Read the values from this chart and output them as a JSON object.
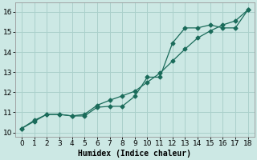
{
  "background_color": "#cce8e4",
  "grid_color": "#aad0cb",
  "line_color": "#1a6b5a",
  "xlabel": "Humidex (Indice chaleur)",
  "xlim": [
    -0.5,
    18.5
  ],
  "ylim": [
    9.8,
    16.45
  ],
  "xticks": [
    0,
    1,
    2,
    3,
    4,
    5,
    6,
    7,
    8,
    9,
    10,
    11,
    12,
    13,
    14,
    15,
    16,
    17,
    18
  ],
  "yticks": [
    10,
    11,
    12,
    13,
    14,
    15,
    16
  ],
  "line1_x": [
    0,
    1,
    2,
    3,
    4,
    5,
    6,
    7,
    8,
    9,
    10,
    11,
    12,
    13,
    14,
    15,
    16,
    17,
    18
  ],
  "line1_y": [
    10.2,
    10.6,
    10.9,
    10.9,
    10.82,
    10.82,
    11.25,
    11.3,
    11.3,
    11.8,
    12.75,
    12.75,
    14.45,
    15.2,
    15.2,
    15.35,
    15.2,
    15.2,
    16.1
  ],
  "line2_x": [
    0,
    1,
    2,
    3,
    4,
    5,
    6,
    7,
    8,
    9,
    10,
    11,
    12,
    13,
    14,
    15,
    16,
    17,
    18
  ],
  "line2_y": [
    10.2,
    10.55,
    10.9,
    10.9,
    10.82,
    10.9,
    11.35,
    11.6,
    11.82,
    12.05,
    12.5,
    12.95,
    13.55,
    14.15,
    14.7,
    15.05,
    15.35,
    15.55,
    16.1
  ],
  "font_size_xlabel": 7,
  "tick_font_size": 6.5
}
